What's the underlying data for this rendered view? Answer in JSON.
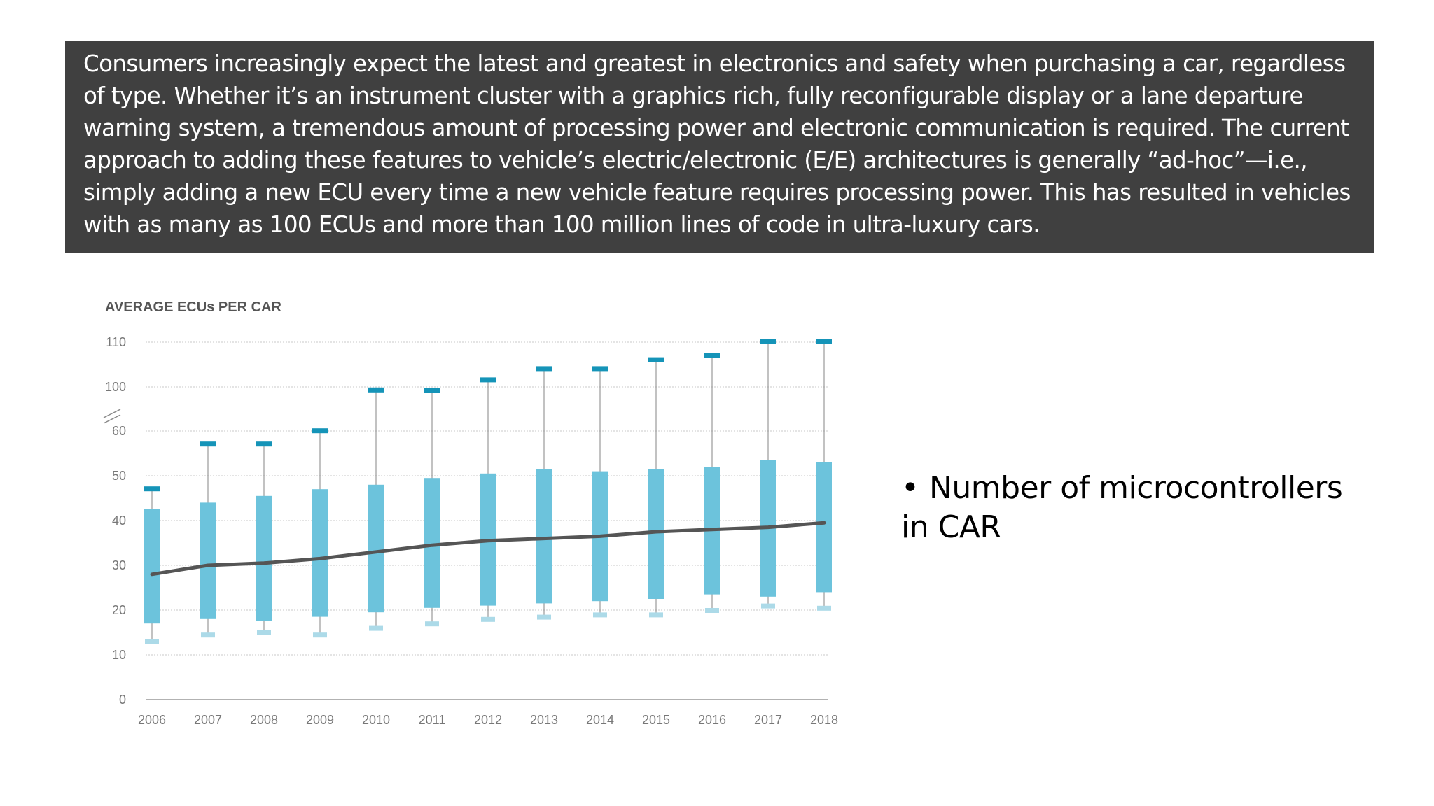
{
  "banner": {
    "text": "Consumers increasingly expect the latest and greatest in electronics and safety when purchasing a car, regardless of type. Whether it’s an instrument cluster with a graphics rich, fully reconfigurable display or a lane departure warning system, a tremendous amount of processing power and electronic communication is required. The current approach to adding these features to vehicle’s electric/electronic (E/E) architectures is generally “ad-hoc”—i.e., simply adding a new ECU every time a new vehicle feature requires processing power. This has resulted in vehicles with as many as 100 ECUs and more than 100 million lines of code in ultra-luxury cars."
  },
  "bullet": {
    "text": "Number of microcontrollers in CAR"
  },
  "colors": {
    "banner_bg": "#404040",
    "box": "#6cc3dc",
    "max_cap": "#1594b8",
    "min_cap": "#acdae8",
    "average_line": "#555555",
    "grid": "#c8c8c8"
  },
  "chart_data": {
    "type": "box",
    "title": "AVERAGE ECUs PER CAR",
    "categories": [
      "2006",
      "2007",
      "2008",
      "2009",
      "2010",
      "2011",
      "2012",
      "2013",
      "2014",
      "2015",
      "2016",
      "2017",
      "2018"
    ],
    "y_ticks": [
      "0",
      "10",
      "20",
      "30",
      "40",
      "50",
      "60",
      "100",
      "110"
    ],
    "y_axis_break": "between 60 and 100",
    "grid": true,
    "series": [
      {
        "key": "max",
        "values": [
          47,
          57,
          57,
          60.5,
          97,
          96.5,
          101.5,
          104,
          104,
          106,
          107,
          110,
          110
        ]
      },
      {
        "key": "box_top",
        "values": [
          42.5,
          44,
          45.5,
          47,
          48,
          49.5,
          50.5,
          51.5,
          51,
          51.5,
          52,
          53.5,
          53
        ]
      },
      {
        "key": "box_bottom",
        "values": [
          17,
          18,
          17.5,
          18.5,
          19.5,
          20.5,
          21,
          21.5,
          22,
          22.5,
          23.5,
          23,
          24
        ]
      },
      {
        "key": "min",
        "values": [
          13,
          14.5,
          15,
          14.5,
          16,
          17,
          18,
          18.5,
          19,
          19,
          20,
          21,
          20.5
        ]
      },
      {
        "key": "average",
        "values": [
          28,
          30,
          30.5,
          31.5,
          33,
          34.5,
          35.5,
          36,
          36.5,
          37.5,
          38,
          38.5,
          39.5
        ]
      }
    ]
  }
}
